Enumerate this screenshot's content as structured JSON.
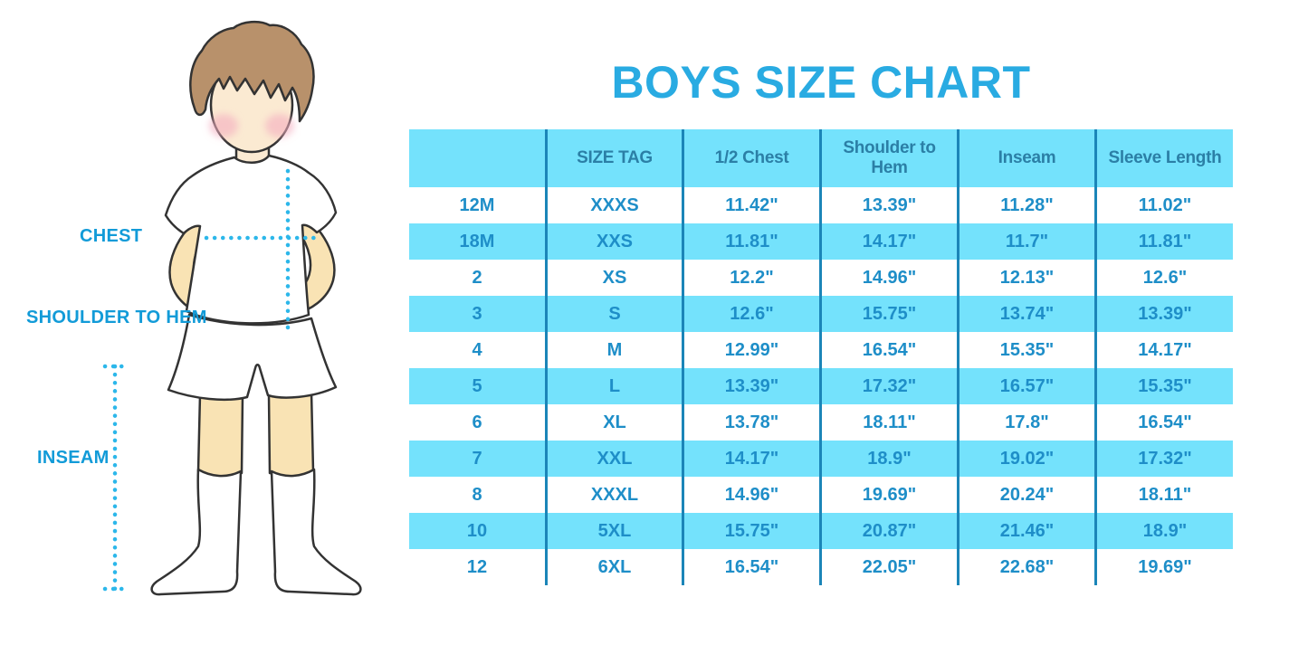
{
  "title": "BOYS SIZE CHART",
  "figure": {
    "description": "cartoon boy in white t-shirt, shorts and knee socks with dotted measurement guides",
    "labels": {
      "chest": "CHEST",
      "shoulder_to_hem": "SHOULDER TO HEM",
      "inseam": "INSEAM"
    },
    "colors": {
      "label_text": "#129BD8",
      "dotted_line": "#2CB7EA",
      "hair": "#B8916B",
      "skin_face": "#FBEAD2",
      "skin_limbs": "#F9E3B4",
      "cheek": "#F3AEC0",
      "outline": "#333333",
      "clothes": "#FFFFFF"
    }
  },
  "chart_data": {
    "type": "table",
    "title": "BOYS SIZE CHART",
    "columns": [
      "",
      "SIZE TAG",
      "1/2 Chest",
      "Shoulder to Hem",
      "Inseam",
      "Sleeve Length"
    ],
    "rows": [
      [
        "12M",
        "XXXS",
        "11.42\"",
        "13.39\"",
        "11.28\"",
        "11.02\""
      ],
      [
        "18M",
        "XXS",
        "11.81\"",
        "14.17\"",
        "11.7\"",
        "11.81\""
      ],
      [
        "2",
        "XS",
        "12.2\"",
        "14.96\"",
        "12.13\"",
        "12.6\""
      ],
      [
        "3",
        "S",
        "12.6\"",
        "15.75\"",
        "13.74\"",
        "13.39\""
      ],
      [
        "4",
        "M",
        "12.99\"",
        "16.54\"",
        "15.35\"",
        "14.17\""
      ],
      [
        "5",
        "L",
        "13.39\"",
        "17.32\"",
        "16.57\"",
        "15.35\""
      ],
      [
        "6",
        "XL",
        "13.78\"",
        "18.11\"",
        "17.8\"",
        "16.54\""
      ],
      [
        "7",
        "XXL",
        "14.17\"",
        "18.9\"",
        "19.02\"",
        "17.32\""
      ],
      [
        "8",
        "XXXL",
        "14.96\"",
        "19.69\"",
        "20.24\"",
        "18.11\""
      ],
      [
        "10",
        "5XL",
        "15.75\"",
        "20.87\"",
        "21.46\"",
        "18.9\""
      ],
      [
        "12",
        "6XL",
        "16.54\"",
        "22.05\"",
        "22.68\"",
        "19.69\""
      ]
    ],
    "highlighted_rows": [
      "18M",
      "3",
      "5",
      "7",
      "10"
    ],
    "layout": {
      "legend_position": "none",
      "grid": "vertical-dividers-only",
      "header_background": "#74E2FC",
      "highlight_row_background": "#74E2FC",
      "plain_row_background": "#FFFFFF",
      "divider_color": "#1B85B8",
      "header_text_color": "#2B7FA6",
      "cell_text_color": "#1E8EC8",
      "title_color": "#29ABE2"
    }
  }
}
